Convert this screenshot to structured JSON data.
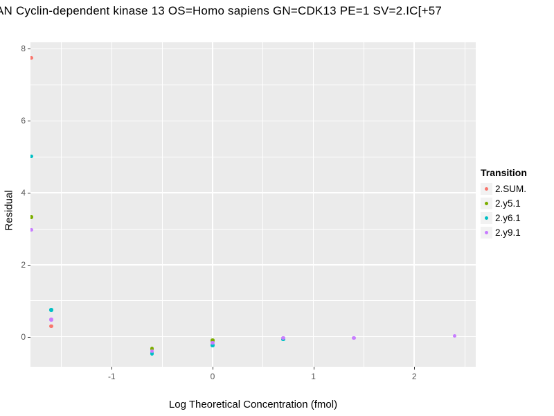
{
  "chart_data": {
    "type": "scatter",
    "title": "AN Cyclin-dependent kinase 13 OS=Homo sapiens GN=CDK13 PE=1 SV=2.IC[+57",
    "xlabel": "Log Theoretical Concentration (fmol)",
    "ylabel": "Residual",
    "legend_title": "Transition",
    "legend_position": "right",
    "panel_bg": "#EBEBEB",
    "grid_color": "#FFFFFF",
    "axis_text_color": "#555555",
    "x_ticks": [
      -1,
      0,
      1,
      2
    ],
    "y_ticks": [
      0,
      2,
      4,
      6,
      8
    ],
    "x_minor_ticks": [
      -1.5,
      -0.5,
      0.5,
      1.5,
      2.5
    ],
    "y_minor_ticks": [
      1,
      3,
      5,
      7
    ],
    "xlim": [
      -1.806,
      2.61
    ],
    "ylim": [
      -0.834,
      8.183
    ],
    "series": [
      {
        "name": "2.SUM.",
        "color": "#F8766D",
        "points": [
          [
            -1.8,
            7.75
          ],
          [
            -1.6,
            0.29
          ]
        ]
      },
      {
        "name": "2.y5.1",
        "color": "#7CAE00",
        "points": [
          [
            -1.8,
            3.33
          ],
          [
            -0.6,
            -0.33
          ],
          [
            0.0,
            -0.1
          ]
        ]
      },
      {
        "name": "2.y6.1",
        "color": "#00BFC4",
        "points": [
          [
            -1.8,
            5.01
          ],
          [
            -1.6,
            0.75
          ],
          [
            -0.6,
            -0.47
          ],
          [
            0.0,
            -0.24
          ],
          [
            0.7,
            -0.07
          ]
        ]
      },
      {
        "name": "2.y9.1",
        "color": "#C77CFF",
        "points": [
          [
            -1.8,
            2.97
          ],
          [
            -1.6,
            0.48
          ],
          [
            -0.6,
            -0.4
          ],
          [
            0.0,
            -0.17
          ],
          [
            0.7,
            -0.03
          ],
          [
            1.4,
            -0.03
          ],
          [
            2.4,
            0.02
          ]
        ]
      }
    ]
  }
}
